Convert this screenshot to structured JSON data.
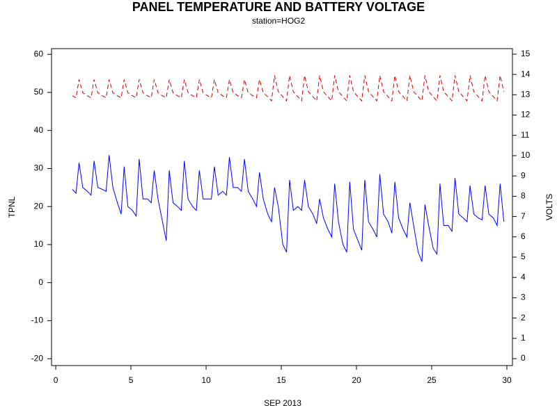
{
  "chart_data": {
    "type": "line",
    "title": "PANEL TEMPERATURE AND BATTERY VOLTAGE",
    "subtitle": "station=HOG2",
    "x_label": "SEP 2013",
    "y_label": "TPNL",
    "y2_label": "VOLTS",
    "xlim": [
      -0.28,
      30.37
    ],
    "xticks": [
      0,
      5,
      10,
      15,
      20,
      25,
      30
    ],
    "ylim": [
      -21.8,
      61.5
    ],
    "yticks": [
      -20,
      -10,
      0,
      10,
      20,
      30,
      40,
      50,
      60
    ],
    "y2lim": [
      -0.34,
      15.27
    ],
    "y2ticks": [
      0,
      1,
      2,
      3,
      4,
      5,
      6,
      7,
      8,
      9,
      10,
      11,
      12,
      13,
      14,
      15
    ],
    "x": [
      1.1,
      1.35,
      1.55,
      1.8,
      2.1,
      2.35,
      2.55,
      2.8,
      3.1,
      3.35,
      3.55,
      3.8,
      4.1,
      4.35,
      4.55,
      4.8,
      5.1,
      5.35,
      5.55,
      5.8,
      6.1,
      6.35,
      6.55,
      6.8,
      7.1,
      7.35,
      7.55,
      7.8,
      8.1,
      8.35,
      8.55,
      8.8,
      9.1,
      9.35,
      9.55,
      9.8,
      10.1,
      10.35,
      10.55,
      10.8,
      11.1,
      11.35,
      11.55,
      11.8,
      12.1,
      12.35,
      12.55,
      12.8,
      13.1,
      13.35,
      13.55,
      13.8,
      14.1,
      14.35,
      14.55,
      14.8,
      15.1,
      15.35,
      15.55,
      15.8,
      16.1,
      16.35,
      16.55,
      16.8,
      17.1,
      17.35,
      17.55,
      17.8,
      18.1,
      18.35,
      18.55,
      18.8,
      19.1,
      19.35,
      19.55,
      19.8,
      20.1,
      20.35,
      20.55,
      20.8,
      21.1,
      21.35,
      21.55,
      21.8,
      22.1,
      22.35,
      22.55,
      22.8,
      23.1,
      23.35,
      23.55,
      23.8,
      24.1,
      24.35,
      24.55,
      24.8,
      25.1,
      25.35,
      25.55,
      25.8,
      26.1,
      26.35,
      26.55,
      26.8,
      27.1,
      27.35,
      27.55,
      27.8,
      28.1,
      28.35,
      28.55,
      28.8,
      29.1,
      29.35,
      29.55,
      29.8
    ],
    "series": [
      {
        "name": "TPNL",
        "color": "#0000ff",
        "line_style": "solid",
        "axis": "y",
        "values": [
          24.5,
          23.5,
          31.5,
          25,
          24,
          23,
          32,
          25,
          24.5,
          24,
          33.5,
          25,
          21,
          18,
          30.5,
          20,
          19,
          17.5,
          32.5,
          22,
          22,
          21,
          29.5,
          22,
          16,
          11,
          29.5,
          21,
          20,
          19,
          32,
          22,
          20,
          19,
          29.5,
          22,
          22,
          22,
          30.5,
          23,
          24,
          23,
          33,
          25,
          25,
          24,
          32.5,
          24,
          22,
          20,
          29,
          22,
          18,
          16,
          25,
          20,
          10,
          8,
          27,
          19,
          20,
          19,
          27,
          20,
          18,
          15.5,
          22,
          17,
          14,
          12,
          26,
          16,
          10,
          8,
          26.5,
          14,
          11,
          8.5,
          27,
          16,
          14,
          12,
          28.5,
          18,
          16,
          13,
          26.5,
          17,
          14,
          12,
          21,
          15,
          8,
          5.5,
          20.5,
          15,
          9,
          7.5,
          26,
          15,
          15,
          13.5,
          27.5,
          18,
          17,
          16,
          25.5,
          18,
          17,
          16.5,
          25.5,
          18,
          17,
          15,
          26,
          16
        ]
      },
      {
        "name": "VOLTS",
        "color": "#cc0000",
        "line_style": "dashed",
        "axis": "y2",
        "values": [
          12.95,
          12.85,
          13.75,
          13.1,
          12.95,
          12.85,
          13.75,
          13.1,
          12.95,
          12.85,
          13.75,
          13.1,
          12.95,
          12.85,
          13.75,
          13.1,
          12.95,
          12.85,
          13.75,
          13.1,
          12.95,
          12.85,
          13.75,
          13.1,
          12.95,
          12.85,
          13.75,
          13.1,
          12.95,
          12.85,
          13.75,
          13.1,
          12.95,
          12.85,
          13.75,
          13.1,
          12.95,
          12.85,
          13.75,
          13.1,
          12.95,
          12.85,
          13.75,
          13.1,
          12.95,
          12.85,
          13.75,
          13.1,
          12.95,
          12.85,
          13.75,
          13.1,
          12.9,
          12.7,
          13.95,
          13.15,
          12.9,
          12.7,
          13.95,
          13.15,
          12.9,
          12.7,
          13.95,
          13.15,
          12.9,
          12.7,
          13.95,
          13.15,
          12.9,
          12.7,
          13.95,
          13.15,
          12.9,
          12.7,
          13.95,
          13.15,
          12.9,
          12.7,
          13.95,
          13.15,
          12.9,
          12.7,
          13.95,
          13.15,
          12.9,
          12.7,
          13.95,
          13.15,
          12.9,
          12.7,
          13.95,
          13.15,
          12.9,
          12.7,
          13.95,
          13.15,
          12.9,
          12.7,
          13.95,
          13.15,
          12.9,
          12.7,
          13.95,
          13.15,
          12.9,
          12.7,
          13.95,
          13.15,
          12.9,
          12.7,
          13.95,
          13.15,
          12.9,
          12.7,
          13.95,
          13.15
        ]
      }
    ]
  }
}
